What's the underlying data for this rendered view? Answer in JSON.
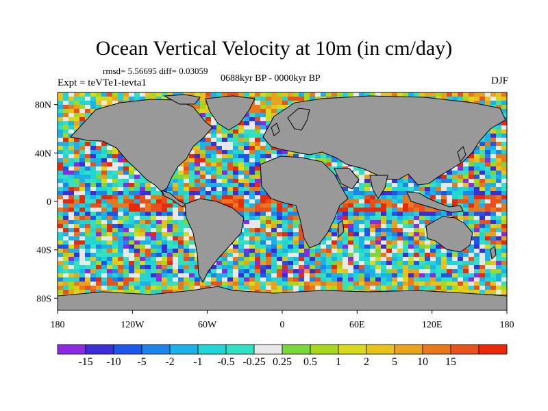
{
  "figure": {
    "title": "Ocean Vertical Velocity at 10m (in cm/day)",
    "stats_line": "rmsd= 5.56695 diff= 0.03059",
    "period_line": "0688kyr BP - 0000kyr BP",
    "experiment_line": "Expt = teVTe1-tevta1",
    "season": "DJF"
  },
  "map": {
    "projection": "cylindrical equidistant",
    "lon_range": [
      -180,
      180
    ],
    "lat_range": [
      -90,
      90
    ],
    "x_ticks": [
      {
        "lon": -180,
        "label": "180"
      },
      {
        "lon": -120,
        "label": "120W"
      },
      {
        "lon": -60,
        "label": "60W"
      },
      {
        "lon": 0,
        "label": "0"
      },
      {
        "lon": 60,
        "label": "60E"
      },
      {
        "lon": 120,
        "label": "120E"
      },
      {
        "lon": 180,
        "label": "180"
      }
    ],
    "y_ticks": [
      {
        "lat": 80,
        "label": "80N"
      },
      {
        "lat": 40,
        "label": "40N"
      },
      {
        "lat": 0,
        "label": "0"
      },
      {
        "lat": -40,
        "label": "40S"
      },
      {
        "lat": -80,
        "label": "80S"
      }
    ],
    "land_color": "#999999",
    "coastline_color": "#000000"
  },
  "colorbar": {
    "colors": [
      "#8a2be2",
      "#3a2fd6",
      "#1e56e8",
      "#1f84e8",
      "#1cb2e8",
      "#22d4d4",
      "#33e0bf",
      "#e8e8e8",
      "#7cd83a",
      "#a8d81c",
      "#d8d81c",
      "#e8c21c",
      "#e8a21c",
      "#e8781c",
      "#e8501c",
      "#e82a0a"
    ],
    "labels": [
      "-15",
      "-10",
      "-5",
      "-2",
      "-1",
      "-0.5",
      "-0.25",
      "0.25",
      "0.5",
      "1",
      "2",
      "5",
      "10",
      "15"
    ]
  }
}
